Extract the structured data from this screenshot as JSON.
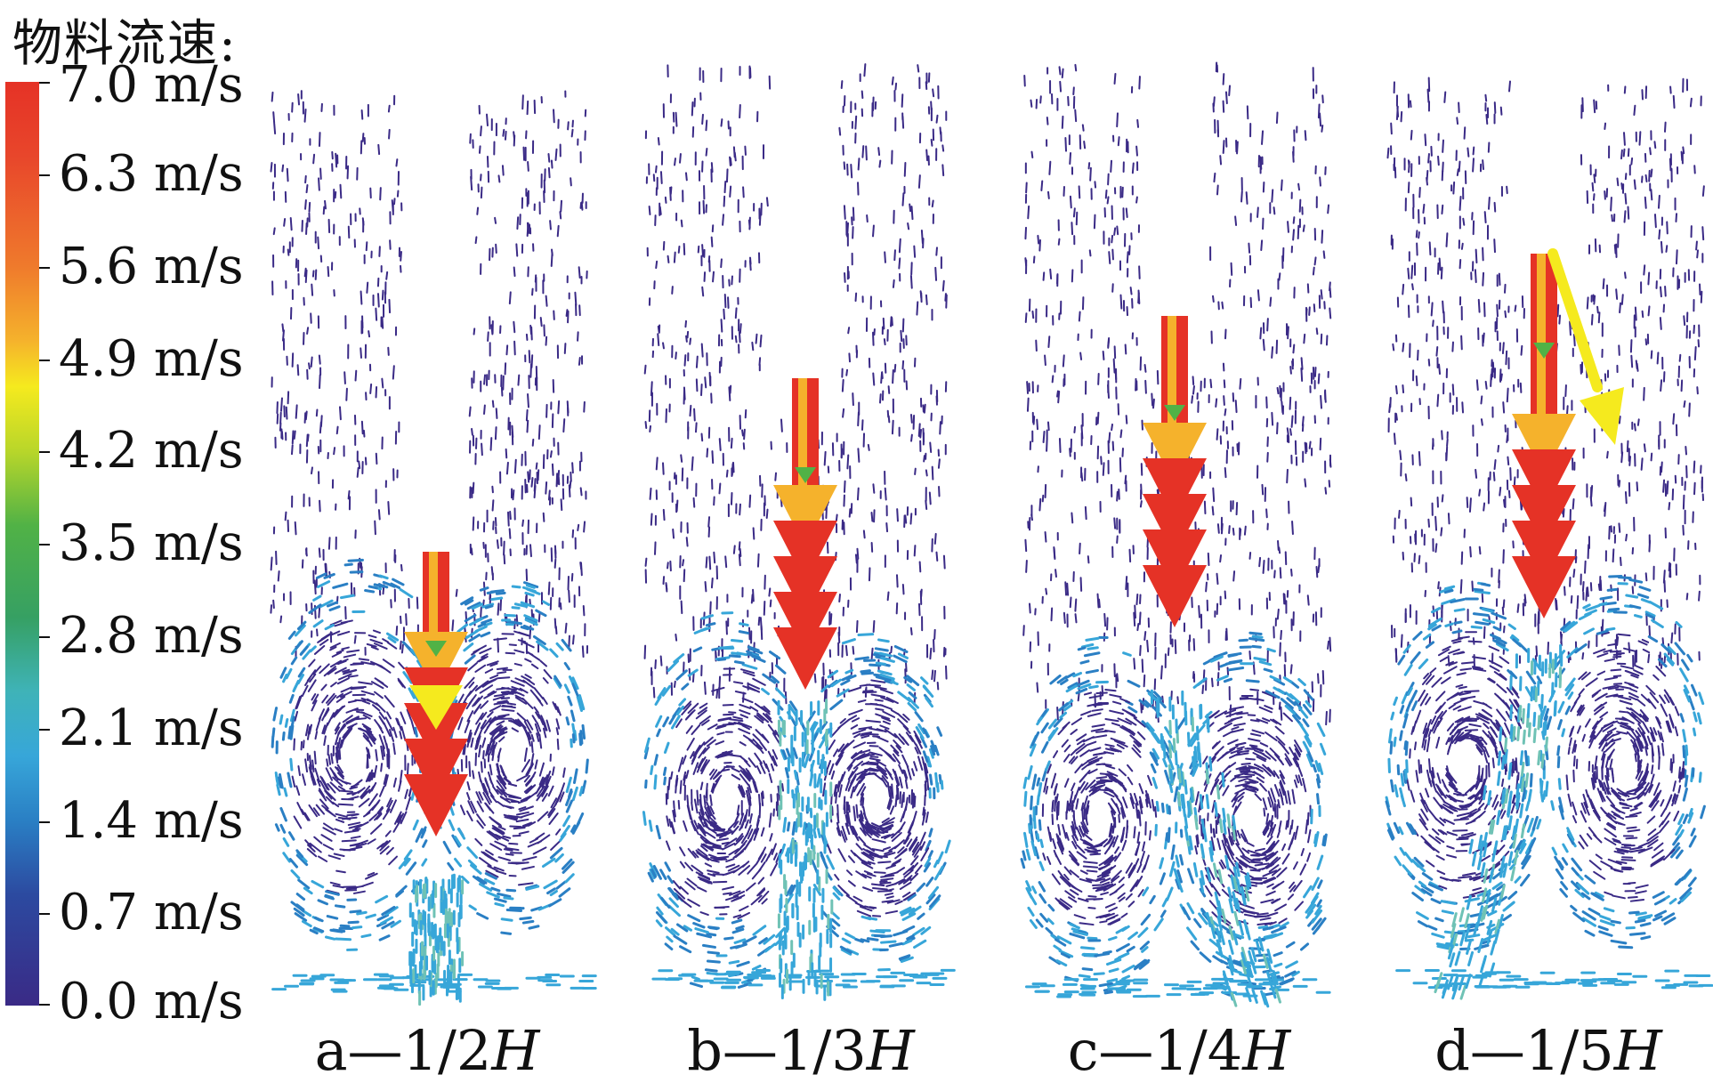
{
  "legend": {
    "title": "物料流速:",
    "ticks": [
      "7.0 m/s",
      "6.3 m/s",
      "5.6 m/s",
      "4.9 m/s",
      "4.2 m/s",
      "3.5 m/s",
      "2.8 m/s",
      "2.1 m/s",
      "1.4 m/s",
      "0.7 m/s",
      "0.0 m/s"
    ],
    "colors": {
      "high": "#e53226",
      "upper_mid": "#f5b22c",
      "mid": "#f5ea1e",
      "lower_mid": "#51b246",
      "cyan": "#37a6d9",
      "low": "#3a2a86"
    }
  },
  "panels": [
    {
      "prefix": "a—1/2",
      "suffix": "H"
    },
    {
      "prefix": "b—1/3",
      "suffix": "H"
    },
    {
      "prefix": "c—1/4",
      "suffix": "H"
    },
    {
      "prefix": "d—1/5",
      "suffix": "H"
    }
  ]
}
